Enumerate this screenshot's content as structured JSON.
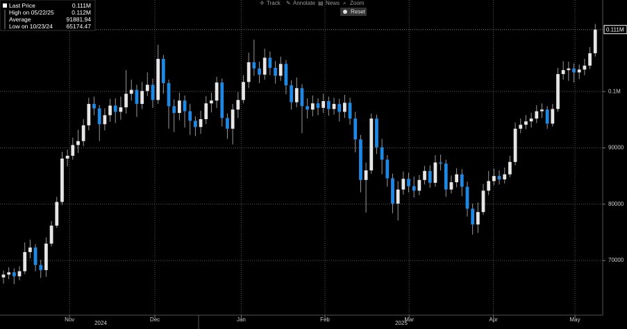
{
  "toolbar": {
    "items": [
      "Track",
      "Annotate",
      "News",
      "Zoom"
    ],
    "reset": "Reset"
  },
  "legend": {
    "rows": [
      {
        "label": "Last Price",
        "value": "0.111M"
      },
      {
        "label": "High on 05/22/25",
        "value": "0.112M"
      },
      {
        "label": "Average",
        "value": "91881.94"
      },
      {
        "label": "Low on 10/23/24",
        "value": "65174.47"
      }
    ]
  },
  "chart_data": {
    "type": "candlestick",
    "open": [
      67000,
      67500,
      67900,
      67200,
      68100,
      71500,
      72300,
      69200,
      68300,
      73000,
      76200,
      80400,
      88100,
      88600,
      90500,
      91200,
      94000,
      97800,
      97000,
      94200,
      95800,
      97500,
      96400,
      97200,
      99600,
      100300,
      97800,
      100100,
      101200,
      98500,
      105800,
      101500,
      97400,
      96200,
      98400,
      96500,
      94800,
      93700,
      95100,
      97900,
      98400,
      101600,
      95300,
      93400,
      96800,
      98500,
      101700,
      105200,
      104100,
      103000,
      106000,
      104200,
      102800,
      104900,
      101100,
      98100,
      100600,
      97400,
      96800,
      97900,
      97100,
      98300,
      96900,
      97800,
      96400,
      98000,
      95200,
      91500,
      84300,
      86000,
      95200,
      90100,
      87900,
      84600,
      80100,
      82600,
      84500,
      83200,
      82400,
      84300,
      85900,
      83800,
      87400,
      87200,
      82600,
      83900,
      85300,
      83100,
      79200,
      76400,
      78600,
      82400,
      84100,
      85000,
      84400,
      85300,
      87500,
      93400,
      94100,
      94700,
      95200,
      96500,
      96800,
      94300,
      96900,
      103100,
      103800,
      104100,
      103400,
      103900,
      104600,
      106800
    ],
    "high": [
      68200,
      68800,
      68600,
      69000,
      73200,
      73700,
      72900,
      70100,
      74100,
      77000,
      81300,
      89300,
      89700,
      91800,
      93200,
      95100,
      98900,
      99100,
      97600,
      97000,
      98700,
      98800,
      99100,
      103800,
      102100,
      101200,
      101700,
      103400,
      102300,
      108300,
      106500,
      102100,
      98600,
      99800,
      99300,
      97800,
      95600,
      96600,
      99200,
      99800,
      102600,
      102300,
      96100,
      97800,
      99900,
      102900,
      106900,
      109200,
      105300,
      107600,
      107100,
      105400,
      106200,
      105600,
      102000,
      102500,
      101300,
      98800,
      99300,
      98800,
      99600,
      99100,
      98900,
      98700,
      99400,
      98900,
      96400,
      92300,
      87400,
      96100,
      95900,
      91600,
      88700,
      85400,
      84100,
      85800,
      85600,
      84900,
      85200,
      86800,
      86900,
      88700,
      88800,
      87900,
      85100,
      86400,
      86200,
      84000,
      80100,
      80300,
      83600,
      85900,
      86300,
      86000,
      86500,
      88600,
      94500,
      95200,
      95800,
      96200,
      97600,
      97900,
      97400,
      97800,
      104200,
      105400,
      105300,
      105000,
      104800,
      105800,
      107900,
      112000
    ],
    "low": [
      65900,
      66700,
      65800,
      66500,
      67600,
      70400,
      68100,
      66900,
      67100,
      72500,
      75800,
      79900,
      86700,
      87900,
      89100,
      90300,
      93100,
      95800,
      91200,
      93100,
      94600,
      94400,
      95000,
      96100,
      98400,
      95500,
      96900,
      99200,
      97100,
      97800,
      99600,
      93400,
      92800,
      94900,
      93600,
      92300,
      92100,
      92500,
      94200,
      96300,
      97100,
      93800,
      91600,
      90600,
      95300,
      97900,
      100600,
      102800,
      101500,
      102100,
      102900,
      101400,
      101900,
      99500,
      96800,
      97200,
      92600,
      95200,
      95600,
      95800,
      96200,
      95700,
      95900,
      94700,
      95300,
      94100,
      89200,
      82100,
      78500,
      85400,
      88900,
      85300,
      83100,
      78400,
      77100,
      81700,
      82100,
      81200,
      81600,
      83500,
      82900,
      83100,
      86000,
      81300,
      81900,
      83000,
      81400,
      77800,
      74600,
      74900,
      78100,
      81600,
      83400,
      83500,
      83700,
      84800,
      86900,
      92600,
      93300,
      93600,
      94400,
      95300,
      93400,
      93800,
      96400,
      102100,
      101900,
      101600,
      102200,
      102900,
      104000,
      106200
    ],
    "close": [
      67500,
      67900,
      67200,
      68100,
      71500,
      72300,
      69200,
      68300,
      73000,
      76200,
      80400,
      88100,
      88600,
      90500,
      91200,
      94000,
      97800,
      97000,
      94200,
      95800,
      97500,
      96400,
      97200,
      99600,
      100300,
      97800,
      100100,
      101200,
      98500,
      105800,
      101500,
      97400,
      96200,
      98400,
      96500,
      94800,
      93700,
      95100,
      97900,
      98400,
      101600,
      95300,
      93400,
      96800,
      98500,
      101700,
      105200,
      104100,
      103000,
      106000,
      104200,
      102800,
      104900,
      101100,
      98100,
      100600,
      97400,
      96800,
      97900,
      97100,
      98300,
      96900,
      97800,
      96400,
      98000,
      95200,
      91500,
      84300,
      86000,
      95200,
      90100,
      87900,
      84600,
      80100,
      82600,
      84500,
      83200,
      82400,
      84300,
      85900,
      83800,
      87400,
      87200,
      82600,
      83900,
      85300,
      83100,
      79200,
      76400,
      78600,
      82400,
      84100,
      85000,
      84400,
      85300,
      87500,
      93400,
      94100,
      94700,
      95200,
      96500,
      96800,
      94300,
      96900,
      103100,
      103800,
      104100,
      103400,
      103900,
      104600,
      106800,
      111000
    ],
    "up_color": "#e6e6e6",
    "down_color": "#1e88e5",
    "wick_color": "#9a9a9a",
    "xlim": [
      -0.65,
      112.4
    ],
    "xticks": [
      {
        "value": 12.4,
        "label": "Nov"
      },
      {
        "value": 28.4,
        "label": "Dec"
      },
      {
        "value": 44.6,
        "label": "Jan"
      },
      {
        "value": 60.3,
        "label": "Feb"
      },
      {
        "value": 76.1,
        "label": "Mar"
      },
      {
        "value": 91.9,
        "label": "Apr"
      },
      {
        "value": 107.2,
        "label": "May"
      }
    ],
    "year_labels": [
      "2024",
      "2025"
    ],
    "ylim": [
      60300,
      116250
    ],
    "yticks": [
      70000,
      80000,
      90000,
      {
        "value": 100000,
        "label": "0.1M"
      }
    ],
    "last_price": {
      "value": 111000,
      "label": "0.111M"
    },
    "grid": true
  }
}
